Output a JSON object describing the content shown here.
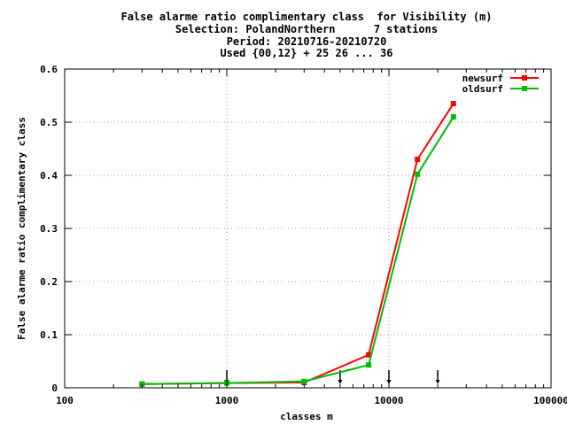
{
  "chart_data": {
    "type": "line",
    "title_lines": [
      "False alarme ratio complimentary class  for Visibility (m)",
      "Selection: PolandNorthern      7 stations",
      "Period: 20210716-20210720",
      "Used {00,12} + 25 26 ... 36"
    ],
    "xlabel": "classes m",
    "ylabel": "False alarme ratio complimentary class",
    "x_scale": "log",
    "xlim": [
      100,
      100000
    ],
    "ylim": [
      0,
      0.6
    ],
    "x_ticks": [
      100,
      1000,
      10000,
      100000
    ],
    "x_tick_labels": [
      "100",
      "1000",
      "10000",
      "100000"
    ],
    "y_ticks": [
      0,
      0.1,
      0.2,
      0.3,
      0.4,
      0.5,
      0.6
    ],
    "y_tick_labels": [
      "0",
      "0.1",
      "0.2",
      "0.3",
      "0.4",
      "0.5",
      "0.6"
    ],
    "grid": true,
    "legend_position": "top-right",
    "series": [
      {
        "name": "newsurf",
        "color": "#ff0000",
        "x": [
          300,
          1000,
          3000,
          7500,
          15000,
          25000
        ],
        "y": [
          0.007,
          0.009,
          0.01,
          0.062,
          0.43,
          0.535
        ]
      },
      {
        "name": "oldsurf",
        "color": "#00bb00",
        "x": [
          300,
          1000,
          3000,
          7500,
          15000,
          25000
        ],
        "y": [
          0.007,
          0.009,
          0.012,
          0.043,
          0.402,
          0.51
        ]
      }
    ],
    "arrow_markers_x": [
      1000,
      5000,
      10000,
      20000
    ]
  }
}
